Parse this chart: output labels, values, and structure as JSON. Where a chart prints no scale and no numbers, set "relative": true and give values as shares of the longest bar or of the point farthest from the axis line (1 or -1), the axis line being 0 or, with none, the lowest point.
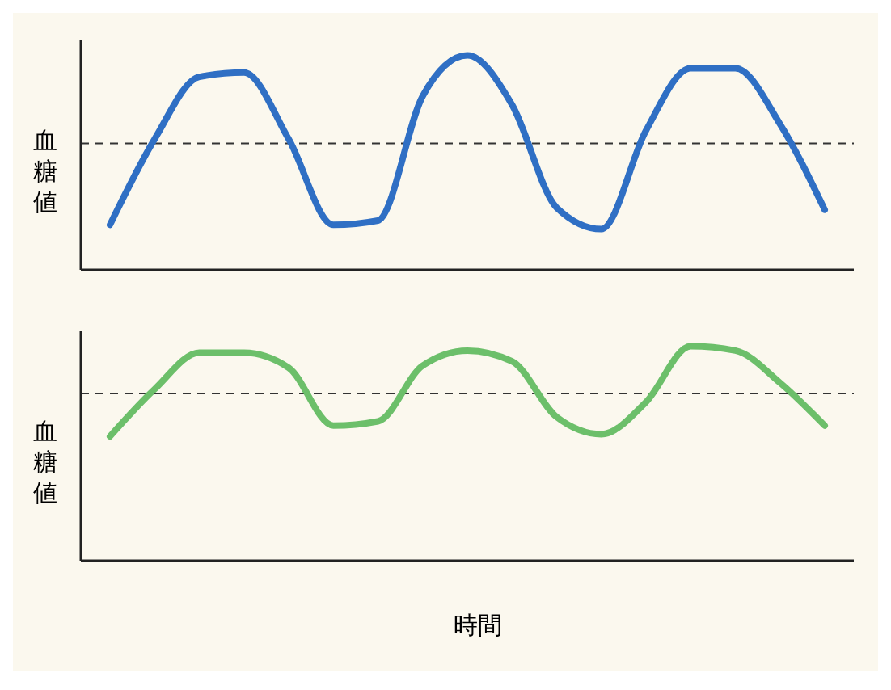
{
  "chart_data": [
    {
      "type": "line",
      "ylabel": "血糖値",
      "relative": true,
      "categories": [
        null,
        null,
        null,
        null,
        null,
        null,
        null,
        null,
        null,
        null,
        null,
        null,
        null,
        null,
        null,
        null,
        null
      ],
      "series": [
        {
          "color": "#2f6fc4",
          "values": [
            0.21,
            0.61,
            0.9,
            0.92,
            0.61,
            0.21,
            0.23,
            0.81,
            1.0,
            0.77,
            0.29,
            0.19,
            0.65,
            0.94,
            0.94,
            0.68,
            0.28
          ]
        }
      ],
      "ref_lines": [
        {
          "axis": "y",
          "value": 0.59,
          "line_style": "dashed",
          "color": "#333333"
        }
      ],
      "marker": "none",
      "line_style": "solid",
      "grid": false,
      "legend": false
    },
    {
      "type": "line",
      "ylabel": "血糖値",
      "xlabel": "時間",
      "relative": true,
      "categories": [
        null,
        null,
        null,
        null,
        null,
        null,
        null,
        null,
        null,
        null,
        null,
        null,
        null,
        null,
        null,
        null,
        null
      ],
      "series": [
        {
          "color": "#6cbf6a",
          "values": [
            0.58,
            0.8,
            0.97,
            0.97,
            0.9,
            0.63,
            0.65,
            0.91,
            0.98,
            0.93,
            0.67,
            0.59,
            0.74,
            1.0,
            0.98,
            0.83,
            0.63
          ]
        }
      ],
      "ref_lines": [
        {
          "axis": "y",
          "value": 0.78,
          "line_style": "dashed",
          "color": "#333333"
        }
      ],
      "marker": "none",
      "line_style": "solid",
      "grid": false,
      "legend": false
    }
  ]
}
